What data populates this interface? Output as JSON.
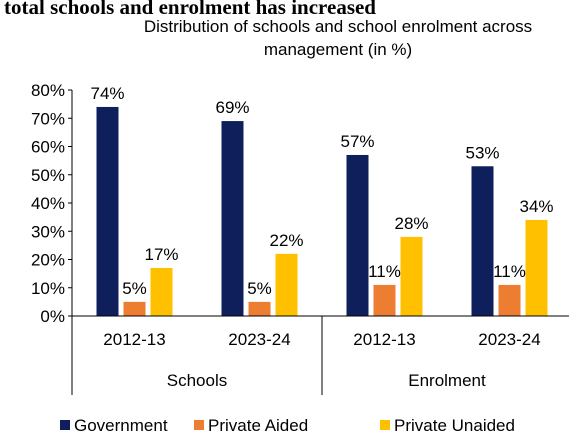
{
  "header": {
    "cut_title": "total schools and enrolment has increased"
  },
  "chart_data": {
    "type": "bar",
    "title": "Distribution of schools and school enrolment across management (in %)",
    "title_lines": [
      "Distribution of schools and school enrolment across",
      "management (in %)"
    ],
    "ylim": [
      0,
      80
    ],
    "yticks": [
      0,
      10,
      20,
      30,
      40,
      50,
      60,
      70,
      80
    ],
    "ytick_labels": [
      "0%",
      "10%",
      "20%",
      "30%",
      "40%",
      "50%",
      "60%",
      "70%",
      "80%"
    ],
    "groups": [
      {
        "name": "Schools",
        "categories": [
          "2012-13",
          "2023-24"
        ]
      },
      {
        "name": "Enrolment",
        "categories": [
          "2012-13",
          "2023-24"
        ]
      }
    ],
    "categories": [
      "2012-13",
      "2023-24",
      "2012-13",
      "2023-24"
    ],
    "series": [
      {
        "name": "Government",
        "color": "#0f1f5c",
        "values": [
          74,
          69,
          57,
          53
        ],
        "labels": [
          "74%",
          "69%",
          "57%",
          "53%"
        ]
      },
      {
        "name": "Private Aided",
        "color": "#ed7d31",
        "values": [
          5,
          5,
          11,
          11
        ],
        "labels": [
          "5%",
          "5%",
          "11%",
          "11%"
        ]
      },
      {
        "name": "Private Unaided",
        "color": "#ffc000",
        "values": [
          17,
          22,
          28,
          34
        ],
        "labels": [
          "17%",
          "22%",
          "28%",
          "34%"
        ]
      }
    ],
    "grid": false,
    "legend_position": "bottom"
  }
}
